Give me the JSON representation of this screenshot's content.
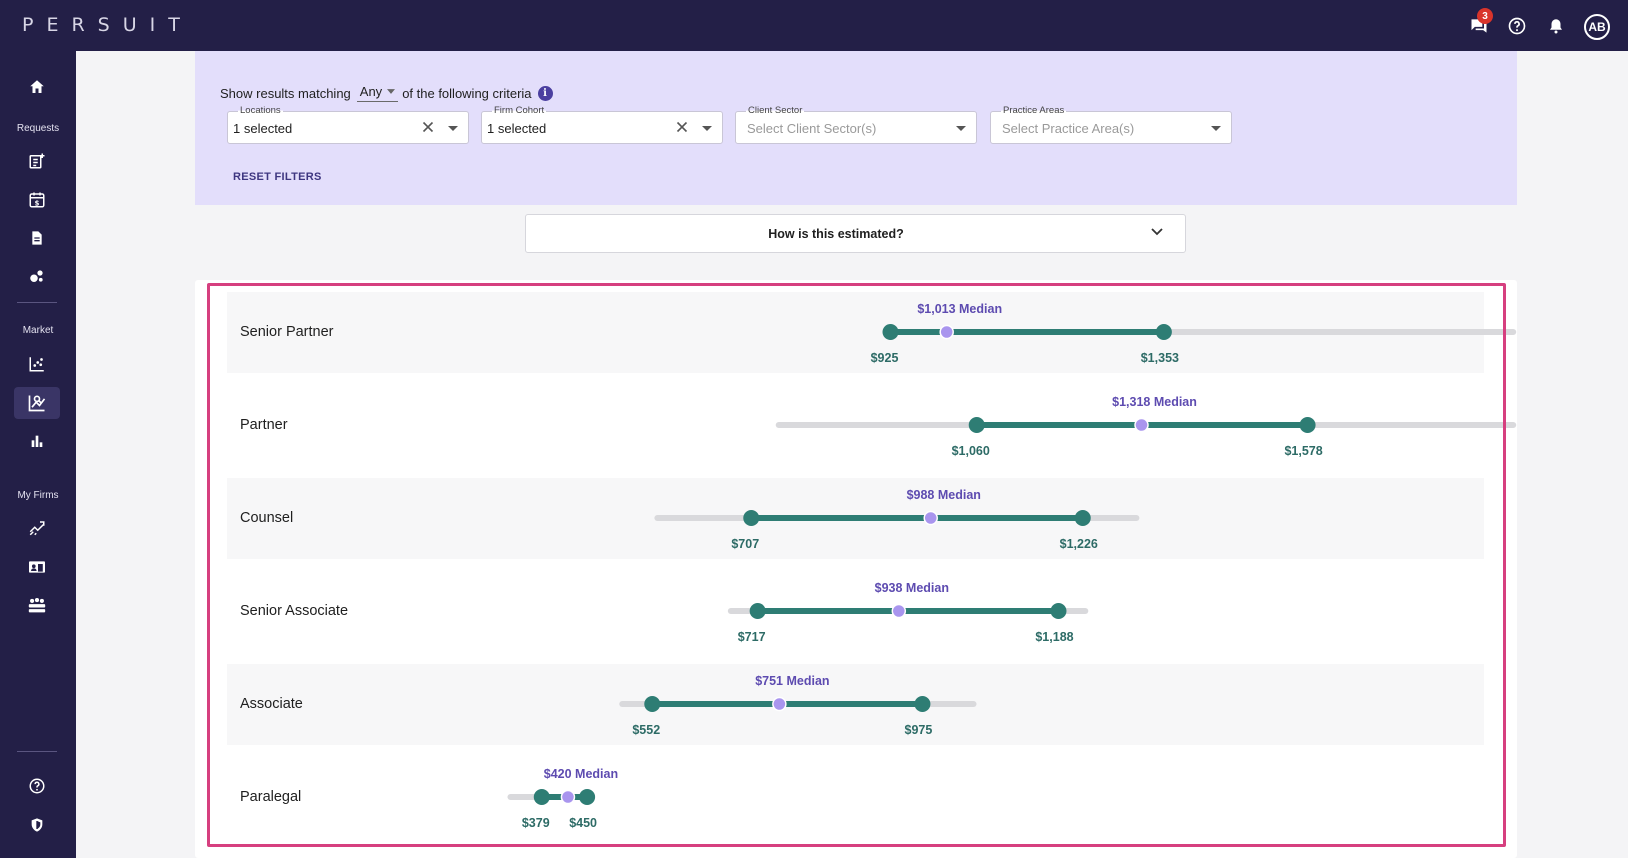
{
  "app": {
    "logo": "PERSUIT",
    "chat_badge_count": "3",
    "user_initials": "AB"
  },
  "sidebar": {
    "sections": [
      {
        "label": "Requests",
        "icons": [
          "new-request-icon",
          "calendar-dollar-icon",
          "document-icon",
          "bubbles-icon"
        ]
      },
      {
        "label": "Market",
        "icons": [
          "scatter-chart-icon",
          "rate-benchmark-icon",
          "bar-chart-icon"
        ]
      },
      {
        "label": "My Firms",
        "icons": [
          "trend-icon",
          "firm-card-icon",
          "team-icon"
        ]
      }
    ],
    "bottom_icons": [
      "help-icon",
      "shield-icon"
    ]
  },
  "filters": {
    "criteria_prefix": "Show results matching",
    "match_mode": "Any",
    "criteria_suffix": "of the following criteria",
    "fields": [
      {
        "label": "Locations",
        "value": "1 selected",
        "placeholder": ""
      },
      {
        "label": "Firm Cohort",
        "value": "1 selected",
        "placeholder": ""
      },
      {
        "label": "Client Sector",
        "value": "",
        "placeholder": "Select Client Sector(s)"
      },
      {
        "label": "Practice Areas",
        "value": "",
        "placeholder": "Select Practice Area(s)"
      }
    ],
    "reset_label": "RESET FILTERS"
  },
  "estimate": {
    "title": "How is this estimated?"
  },
  "colors": {
    "range": "#2e7d74",
    "median": "#a995ee",
    "track": "#d9d9dc",
    "median_text": "#5d4bb0",
    "value_text": "#2d6b66",
    "highlight": "#d63f7f"
  },
  "chart_data": {
    "type": "range",
    "rows": [
      {
        "role": "Senior Partner",
        "low": 925,
        "median": 1013,
        "high": 1353,
        "track_min": 925,
        "track_max": 1900,
        "low_label": "$925",
        "median_label": "$1,013 Median",
        "high_label": "$1,353"
      },
      {
        "role": "Partner",
        "low": 1060,
        "median": 1318,
        "high": 1578,
        "track_min": 750,
        "track_max": 1900,
        "low_label": "$1,060",
        "median_label": "$1,318 Median",
        "high_label": "$1,578"
      },
      {
        "role": "Counsel",
        "low": 707,
        "median": 988,
        "high": 1226,
        "track_min": 560,
        "track_max": 1310,
        "low_label": "$707",
        "median_label": "$988 Median",
        "high_label": "$1,226"
      },
      {
        "role": "Senior Associate",
        "low": 717,
        "median": 938,
        "high": 1188,
        "track_min": 675,
        "track_max": 1230,
        "low_label": "$717",
        "median_label": "$938 Median",
        "high_label": "$1,188"
      },
      {
        "role": "Associate",
        "low": 552,
        "median": 751,
        "high": 975,
        "track_min": 505,
        "track_max": 1055,
        "low_label": "$552",
        "median_label": "$751 Median",
        "high_label": "$975"
      },
      {
        "role": "Paralegal",
        "low": 379,
        "median": 420,
        "high": 450,
        "track_min": 330,
        "track_max": 450,
        "low_label": "$379",
        "median_label": "$420 Median",
        "high_label": "$450"
      }
    ]
  }
}
